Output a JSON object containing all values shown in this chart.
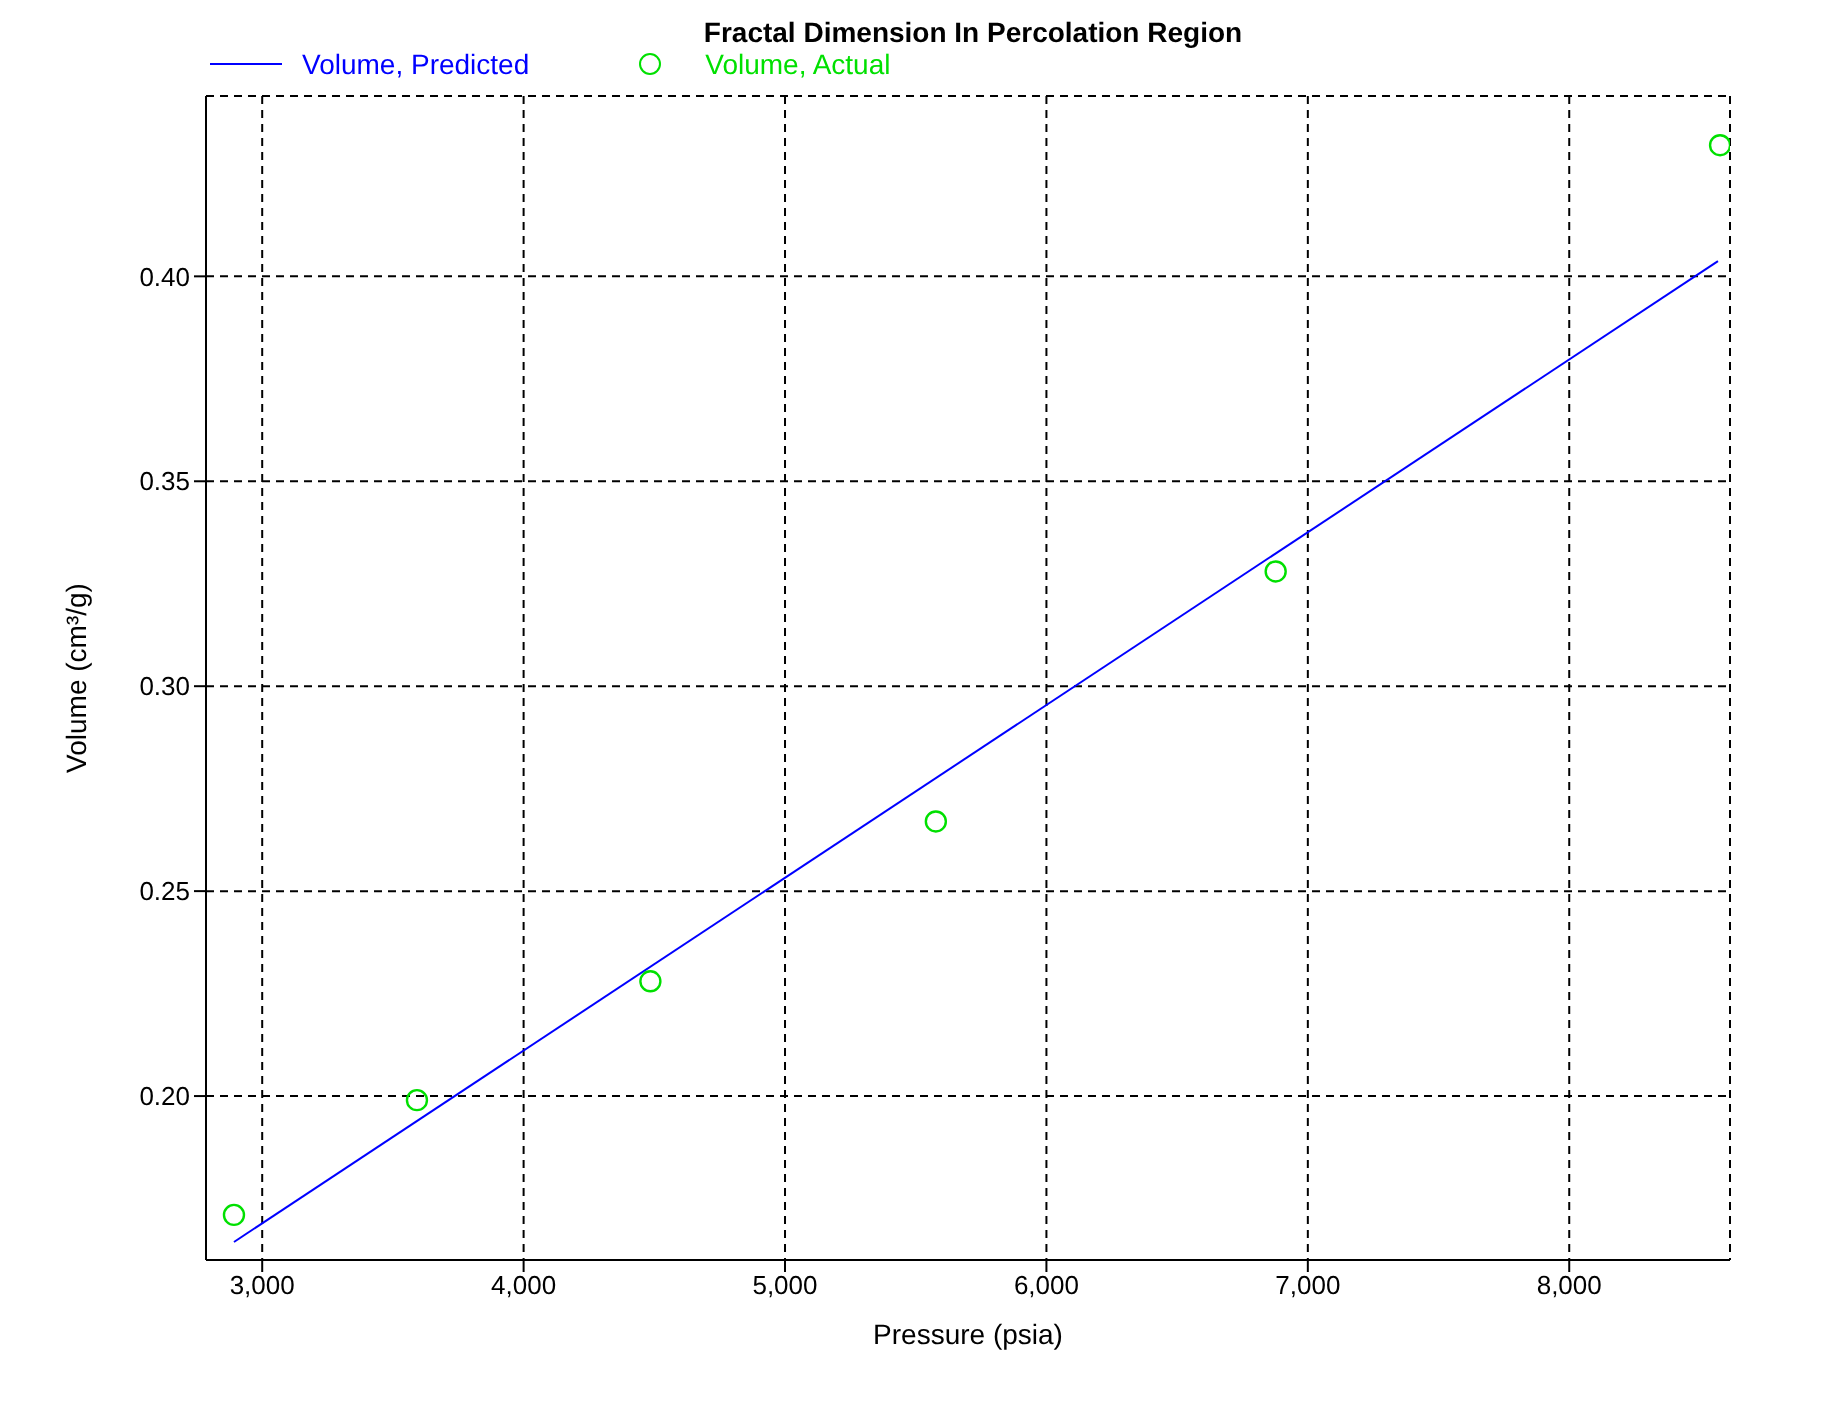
{
  "chart_data": {
    "type": "scatter",
    "title": "Fractal Dimension In Percolation Region",
    "xlabel": "Pressure (psia)",
    "ylabel": "Volume (cm³/g)",
    "series": [
      {
        "name": "Volume, Predicted",
        "type": "line",
        "color": "#0000ff",
        "marker": "none",
        "x": [
          2892,
          8569
        ],
        "values": [
          0.1644,
          0.4037
        ]
      },
      {
        "name": "Volume, Actual",
        "color": "#00e000",
        "marker": "circle",
        "x": [
          2892,
          3592,
          4485,
          5577,
          6877,
          8577
        ],
        "values": [
          0.171,
          0.199,
          0.228,
          0.267,
          0.328,
          0.432
        ]
      }
    ],
    "xlim": [
      2785,
      8615
    ],
    "xticks": [
      {
        "value": 3000,
        "label": "3,000"
      },
      {
        "value": 4000,
        "label": "4,000"
      },
      {
        "value": 5000,
        "label": "5,000"
      },
      {
        "value": 6000,
        "label": "6,000"
      },
      {
        "value": 7000,
        "label": "7,000"
      },
      {
        "value": 8000,
        "label": "8,000"
      }
    ],
    "ylim": [
      0.16,
      0.444
    ],
    "yticks": [
      {
        "value": 0.2,
        "label": "0.20"
      },
      {
        "value": 0.25,
        "label": "0.25"
      },
      {
        "value": 0.3,
        "label": "0.30"
      },
      {
        "value": 0.35,
        "label": "0.35"
      },
      {
        "value": 0.4,
        "label": "0.40"
      }
    ],
    "grid": true,
    "legend": "top left"
  }
}
